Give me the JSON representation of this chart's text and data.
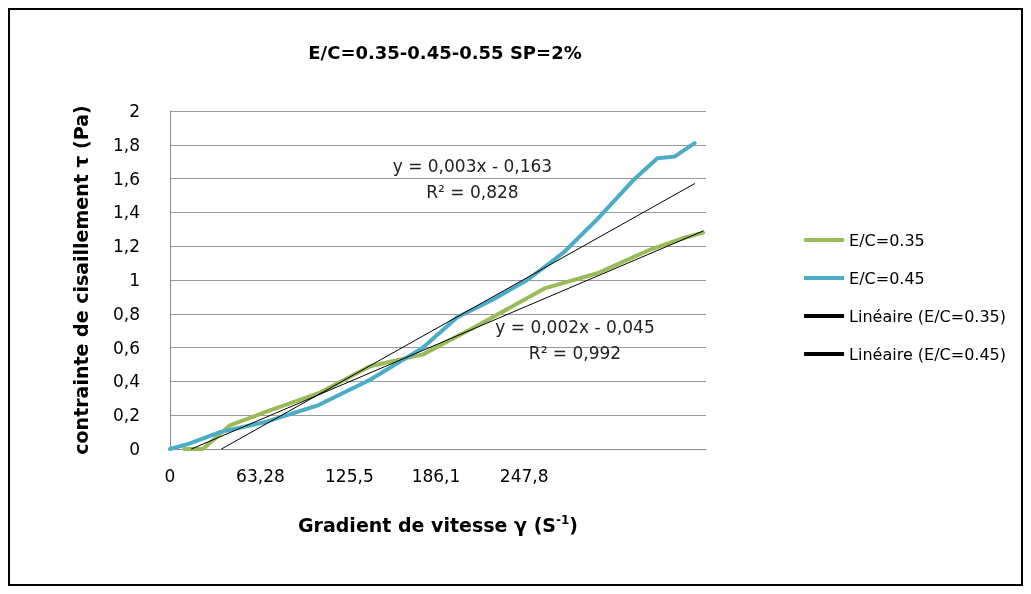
{
  "chart_data": {
    "type": "line",
    "title": "E/C=0.35-0.45-0.55 SP=2%",
    "xlabel": "Gradient de vitesse γ (S$^{-1}$)",
    "ylabel": "contrainte de cisaillement τ (Pa)",
    "xlim": [
      0,
      375
    ],
    "xticks": [
      0,
      {
        "value": 63.28,
        "label": "63,28"
      },
      {
        "value": 125.5,
        "label": "125,5"
      },
      {
        "value": 186.1,
        "label": "186,1"
      },
      {
        "value": 247.8,
        "label": "247,8"
      }
    ],
    "ylim": [
      0,
      2
    ],
    "yticks": [
      0,
      {
        "value": 0.2,
        "label": "0,2"
      },
      {
        "value": 0.4,
        "label": "0,4"
      },
      {
        "value": 0.6,
        "label": "0,6"
      },
      {
        "value": 0.8,
        "label": "0,8"
      },
      1,
      {
        "value": 1.2,
        "label": "1,2"
      },
      {
        "value": 1.4,
        "label": "1,4"
      },
      {
        "value": 1.6,
        "label": "1,6"
      },
      {
        "value": 1.8,
        "label": "1,8"
      },
      2
    ],
    "grid": "y",
    "legend": "right",
    "marker": "none",
    "series": [
      {
        "name": "E/C=0.35",
        "color": "#9bbb59",
        "x": [
          10,
          23,
          42,
          67,
          104,
          140,
          177,
          213,
          262,
          299,
          336,
          360,
          373
        ],
        "values": [
          0,
          0,
          0.14,
          0.22,
          0.33,
          0.49,
          0.56,
          0.72,
          0.95,
          1.04,
          1.18,
          1.25,
          1.28
        ]
      },
      {
        "name": "E/C=0.45",
        "color": "#4bacc6",
        "x": [
          0,
          13,
          35,
          67,
          104,
          140,
          177,
          201,
          225,
          250,
          275,
          299,
          324,
          341,
          353,
          367
        ],
        "values": [
          0,
          0.03,
          0.1,
          0.16,
          0.26,
          0.41,
          0.6,
          0.78,
          0.88,
          1.0,
          1.16,
          1.36,
          1.59,
          1.72,
          1.73,
          1.81
        ]
      },
      {
        "name": "Linéaire (E/C=0.35)",
        "color": "#000000",
        "x": [
          15,
          373
        ],
        "values": [
          0,
          1.29
        ]
      },
      {
        "name": "Linéaire (E/C=0.45)",
        "color": "#000000",
        "x": [
          36,
          367
        ],
        "values": [
          0,
          1.57
        ]
      }
    ],
    "annotations": [
      "y = 0,003x - 0,163\nR² = 0,828",
      "y = 0,002x - 0,045\nR² = 0,992"
    ]
  }
}
